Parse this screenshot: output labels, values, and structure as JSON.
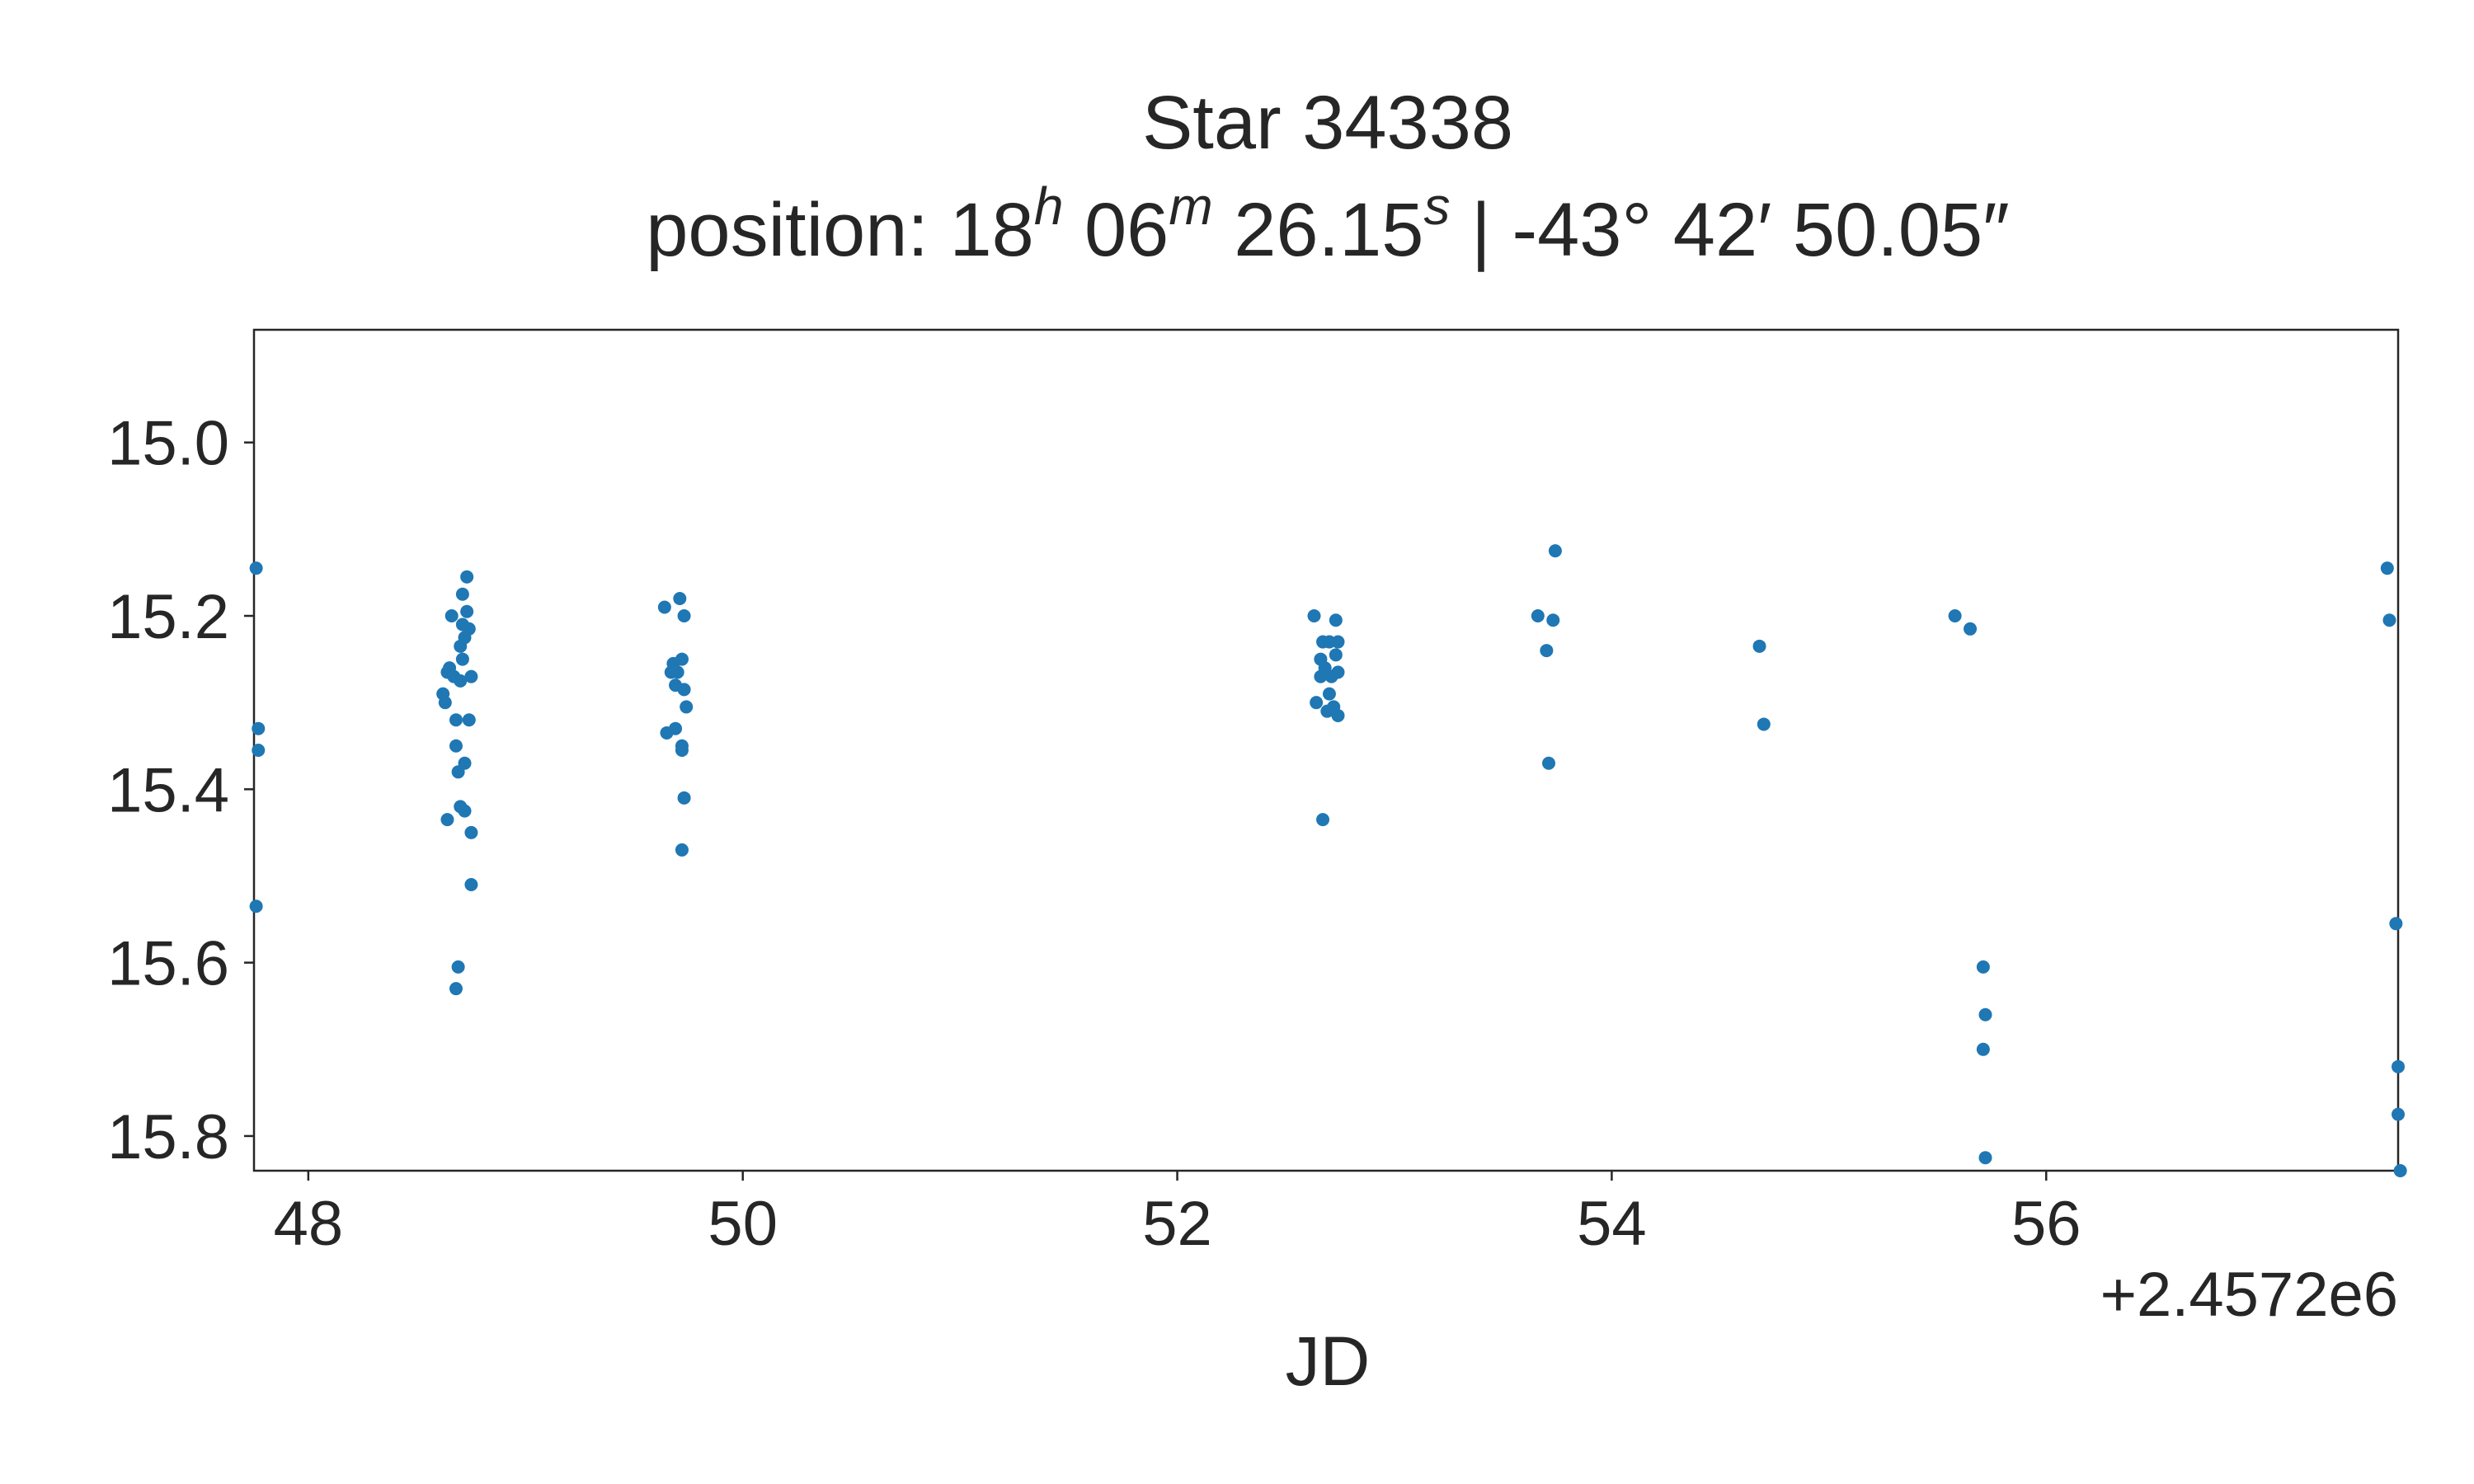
{
  "chart_data": {
    "type": "scatter",
    "title": "Star 34338",
    "subtitle": {
      "prefix": "position: ",
      "ra_h": "18",
      "ra_h_unit": "h",
      "ra_m": " 06",
      "ra_m_unit": "m",
      "ra_s": " 26.15",
      "ra_s_unit": "s",
      "dec": " | -43° 42′ 50.05″"
    },
    "xlabel": "JD",
    "ylabel": "",
    "x_offset_label": "+2.4572e6",
    "xlim": [
      47.75,
      57.62
    ],
    "ylim": [
      15.84,
      14.87
    ],
    "y_inverted": true,
    "x_ticks": [
      48,
      50,
      52,
      54,
      56
    ],
    "x_tick_labels": [
      "48",
      "50",
      "52",
      "54",
      "56"
    ],
    "y_ticks": [
      15.0,
      15.2,
      15.4,
      15.6,
      15.8
    ],
    "y_tick_labels": [
      "15.0",
      "15.2",
      "15.4",
      "15.6",
      "15.8"
    ],
    "grid": false,
    "point_color": "#1f77b4",
    "series": [
      {
        "values": [
          [
            47.76,
            15.145
          ],
          [
            47.77,
            15.33
          ],
          [
            47.77,
            15.355
          ],
          [
            47.76,
            15.535
          ],
          [
            48.62,
            15.29
          ],
          [
            48.63,
            15.3
          ],
          [
            48.64,
            15.265
          ],
          [
            48.64,
            15.435
          ],
          [
            48.65,
            15.26
          ],
          [
            48.66,
            15.2
          ],
          [
            48.67,
            15.27
          ],
          [
            48.68,
            15.32
          ],
          [
            48.68,
            15.35
          ],
          [
            48.69,
            15.38
          ],
          [
            48.69,
            15.605
          ],
          [
            48.68,
            15.63
          ],
          [
            48.7,
            15.235
          ],
          [
            48.7,
            15.275
          ],
          [
            48.7,
            15.42
          ],
          [
            48.71,
            15.175
          ],
          [
            48.71,
            15.21
          ],
          [
            48.71,
            15.25
          ],
          [
            48.72,
            15.225
          ],
          [
            48.72,
            15.37
          ],
          [
            48.72,
            15.425
          ],
          [
            48.73,
            15.155
          ],
          [
            48.73,
            15.195
          ],
          [
            48.74,
            15.215
          ],
          [
            48.74,
            15.32
          ],
          [
            48.75,
            15.27
          ],
          [
            48.75,
            15.45
          ],
          [
            48.75,
            15.51
          ],
          [
            49.64,
            15.19
          ],
          [
            49.65,
            15.335
          ],
          [
            49.67,
            15.265
          ],
          [
            49.68,
            15.255
          ],
          [
            49.69,
            15.28
          ],
          [
            49.69,
            15.33
          ],
          [
            49.7,
            15.265
          ],
          [
            49.71,
            15.18
          ],
          [
            49.72,
            15.25
          ],
          [
            49.72,
            15.35
          ],
          [
            49.73,
            15.2
          ],
          [
            49.73,
            15.285
          ],
          [
            49.74,
            15.305
          ],
          [
            49.72,
            15.355
          ],
          [
            49.73,
            15.41
          ],
          [
            49.72,
            15.47
          ],
          [
            52.63,
            15.2
          ],
          [
            52.64,
            15.3
          ],
          [
            52.66,
            15.25
          ],
          [
            52.66,
            15.27
          ],
          [
            52.67,
            15.23
          ],
          [
            52.67,
            15.435
          ],
          [
            52.68,
            15.26
          ],
          [
            52.69,
            15.31
          ],
          [
            52.7,
            15.23
          ],
          [
            52.7,
            15.29
          ],
          [
            52.71,
            15.27
          ],
          [
            52.72,
            15.305
          ],
          [
            52.73,
            15.205
          ],
          [
            52.73,
            15.245
          ],
          [
            52.74,
            15.23
          ],
          [
            52.74,
            15.265
          ],
          [
            52.74,
            15.315
          ],
          [
            53.66,
            15.2
          ],
          [
            53.7,
            15.24
          ],
          [
            53.71,
            15.37
          ],
          [
            53.73,
            15.205
          ],
          [
            53.74,
            15.125
          ],
          [
            54.68,
            15.235
          ],
          [
            54.7,
            15.325
          ],
          [
            55.58,
            15.2
          ],
          [
            55.65,
            15.215
          ],
          [
            55.71,
            15.605
          ],
          [
            55.72,
            15.66
          ],
          [
            55.71,
            15.7
          ],
          [
            55.72,
            15.825
          ],
          [
            57.57,
            15.145
          ],
          [
            57.58,
            15.205
          ],
          [
            57.61,
            15.555
          ],
          [
            57.62,
            15.72
          ],
          [
            57.62,
            15.775
          ],
          [
            57.63,
            15.84
          ]
        ]
      }
    ]
  }
}
